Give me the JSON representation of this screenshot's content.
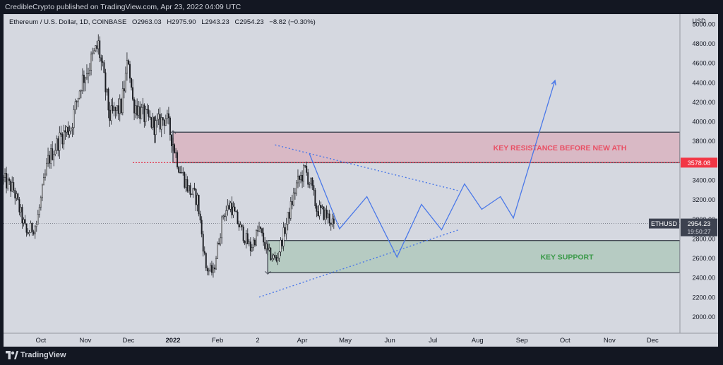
{
  "header": {
    "published": "CredibleCrypto published on TradingView.com, Apr 23, 2022 04:09 UTC"
  },
  "legend": {
    "symbol": "Ethereum / U.S. Dollar, 1D, COINBASE",
    "o_label": "O",
    "o": "2963.03",
    "h_label": "H",
    "h": "2975.90",
    "l_label": "L",
    "l": "2943.23",
    "c_label": "C",
    "c": "2954.23",
    "change": "−8.82 (−0.30%)"
  },
  "footer": {
    "brand": "TradingView"
  },
  "colors": {
    "up": "#1b1d22",
    "down": "#1b1d22",
    "up_fill": "#ffffff",
    "resistance": "#e94f64",
    "support": "#3c9a4a",
    "drawing": "#4a78e8",
    "price_tag": "#3d4250"
  },
  "chart_data": {
    "type": "candlestick",
    "title": "Ethereum / U.S. Dollar, 1D, COINBASE",
    "currency": "USD",
    "y_axis": {
      "range": [
        1830,
        5100
      ],
      "ticks": [
        "5000.00",
        "4800.00",
        "4600.00",
        "4400.00",
        "4200.00",
        "4000.00",
        "3800.00",
        "3600.00",
        "3400.00",
        "3200.00",
        "3000.00",
        "2800.00",
        "2600.00",
        "2400.00",
        "2200.00",
        "2000.00"
      ],
      "tick_values": [
        5000,
        4800,
        4600,
        4400,
        4200,
        4000,
        3800,
        3600,
        3400,
        3200,
        3000,
        2800,
        2600,
        2400,
        2200,
        2000
      ]
    },
    "x_axis": {
      "labels": [
        "Oct",
        "Nov",
        "Dec",
        "2022",
        "Feb",
        "2",
        "Apr",
        "May",
        "Jun",
        "Jul",
        "Aug",
        "Sep",
        "Oct",
        "Nov",
        "Dec"
      ],
      "label_dates": [
        "2021-10-01",
        "2021-11-01",
        "2021-12-01",
        "2022-01-01",
        "2022-02-01",
        "2022-03-01",
        "2022-04-01",
        "2022-05-01",
        "2022-06-01",
        "2022-07-01",
        "2022-08-01",
        "2022-09-01",
        "2022-10-01",
        "2022-11-01",
        "2022-12-01"
      ],
      "range": [
        "2021-09-05",
        "2022-12-20"
      ]
    },
    "waypoints": [
      {
        "date": "2021-09-05",
        "price": 3400
      },
      {
        "date": "2021-09-12",
        "price": 3300
      },
      {
        "date": "2021-09-21",
        "price": 2850
      },
      {
        "date": "2021-09-28",
        "price": 2950
      },
      {
        "date": "2021-10-06",
        "price": 3600
      },
      {
        "date": "2021-10-15",
        "price": 3850
      },
      {
        "date": "2021-10-22",
        "price": 3950
      },
      {
        "date": "2021-10-29",
        "price": 4400
      },
      {
        "date": "2021-11-03",
        "price": 4550
      },
      {
        "date": "2021-11-10",
        "price": 4780
      },
      {
        "date": "2021-11-18",
        "price": 4050
      },
      {
        "date": "2021-11-26",
        "price": 4150
      },
      {
        "date": "2021-12-01",
        "price": 4650
      },
      {
        "date": "2021-12-04",
        "price": 4200
      },
      {
        "date": "2021-12-12",
        "price": 4050
      },
      {
        "date": "2021-12-20",
        "price": 3950
      },
      {
        "date": "2021-12-27",
        "price": 4050
      },
      {
        "date": "2022-01-01",
        "price": 3780
      },
      {
        "date": "2022-01-05",
        "price": 3550
      },
      {
        "date": "2022-01-12",
        "price": 3300
      },
      {
        "date": "2022-01-18",
        "price": 3200
      },
      {
        "date": "2022-01-24",
        "price": 2500
      },
      {
        "date": "2022-01-29",
        "price": 2450
      },
      {
        "date": "2022-02-05",
        "price": 3050
      },
      {
        "date": "2022-02-10",
        "price": 3150
      },
      {
        "date": "2022-02-17",
        "price": 2900
      },
      {
        "date": "2022-02-24",
        "price": 2700
      },
      {
        "date": "2022-03-02",
        "price": 2900
      },
      {
        "date": "2022-03-08",
        "price": 2650
      },
      {
        "date": "2022-03-14",
        "price": 2580
      },
      {
        "date": "2022-03-21",
        "price": 2950
      },
      {
        "date": "2022-03-28",
        "price": 3350
      },
      {
        "date": "2022-04-03",
        "price": 3500
      },
      {
        "date": "2022-04-07",
        "price": 3350
      },
      {
        "date": "2022-04-11",
        "price": 3100
      },
      {
        "date": "2022-04-17",
        "price": 3050
      },
      {
        "date": "2022-04-23",
        "price": 2954
      }
    ],
    "last_price": {
      "value": "2954.23",
      "label": "ETHUSD",
      "countdown": "19:50:27"
    },
    "resistance_zone": {
      "label": "KEY RESISTANCE BEFORE NEW ATH",
      "from": 3578.08,
      "to": 3890,
      "start": "2022-01-01",
      "level_label": "3578.08"
    },
    "support_zone": {
      "label": "KEY SUPPORT",
      "from": 2450,
      "to": 2780,
      "start": "2022-03-08"
    },
    "resistance_level_line": {
      "value": 3578.08,
      "start": "2021-12-04"
    },
    "trendlines": [
      {
        "from": {
          "date": "2022-03-02",
          "price": 2200
        },
        "to": {
          "date": "2022-07-19",
          "price": 2890
        }
      },
      {
        "from": {
          "date": "2022-03-13",
          "price": 3760
        },
        "to": {
          "date": "2022-07-19",
          "price": 3290
        }
      }
    ],
    "projection": [
      {
        "date": "2022-04-06",
        "price": 3670
      },
      {
        "date": "2022-04-27",
        "price": 2900
      },
      {
        "date": "2022-05-16",
        "price": 3230
      },
      {
        "date": "2022-06-06",
        "price": 2610
      },
      {
        "date": "2022-06-23",
        "price": 3150
      },
      {
        "date": "2022-07-07",
        "price": 2890
      },
      {
        "date": "2022-07-23",
        "price": 3360
      },
      {
        "date": "2022-08-04",
        "price": 3100
      },
      {
        "date": "2022-08-17",
        "price": 3230
      },
      {
        "date": "2022-08-26",
        "price": 3010
      },
      {
        "date": "2022-09-24",
        "price": 4420
      }
    ]
  }
}
